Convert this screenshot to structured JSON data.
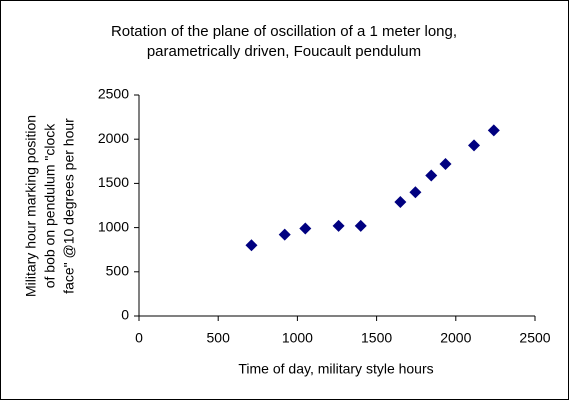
{
  "chart_data": {
    "type": "scatter",
    "title": [
      "Rotation of the plane of oscillation of a 1 meter long,",
      "parametrically  driven, Foucault pendulum"
    ],
    "x_label": "Time of day, military style hours",
    "y_label": [
      "Military hour marking position",
      "of bob on pendulum \"clock",
      "face\" @10 degrees per hour"
    ],
    "color": "#000080",
    "x": [
      710,
      920,
      1050,
      1260,
      1400,
      1650,
      1745,
      1845,
      1935,
      2115,
      2240
    ],
    "values": [
      800,
      920,
      990,
      1020,
      1020,
      1290,
      1400,
      1590,
      1720,
      1930,
      2100
    ],
    "xlim": [
      0,
      2500
    ],
    "xticks": [
      0,
      500,
      1000,
      1500,
      2000,
      2500
    ],
    "ylim": [
      0,
      2500
    ],
    "yticks": [
      0,
      500,
      1000,
      1500,
      2000,
      2500
    ]
  }
}
